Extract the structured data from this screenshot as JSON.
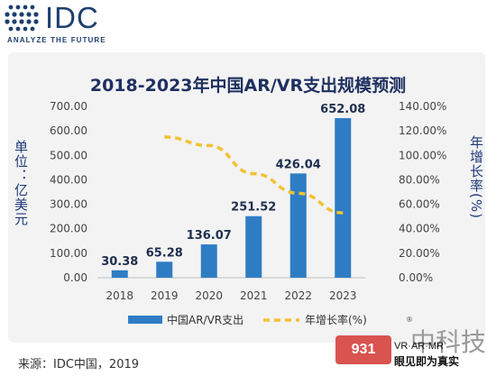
{
  "header": {
    "logo_text": "IDC",
    "logo_tagline": "ANALYZE THE FUTURE"
  },
  "chart_data": {
    "type": "bar",
    "title": "2018-2023年中国AR/VR支出规模预测",
    "ylabel": "单位：亿美元",
    "y2label": "年增长率(%)",
    "categories": [
      "2018",
      "2019",
      "2020",
      "2021",
      "2022",
      "2023"
    ],
    "ylim": [
      0,
      700
    ],
    "y_ticks": [
      "0.00",
      "100.00",
      "200.00",
      "300.00",
      "400.00",
      "500.00",
      "600.00",
      "700.00"
    ],
    "y2lim": [
      0,
      140
    ],
    "y2_ticks": [
      "0.00%",
      "20.00%",
      "40.00%",
      "60.00%",
      "80.00%",
      "100.00%",
      "120.00%",
      "140.00%"
    ],
    "grid": false,
    "legend_position": "bottom",
    "series": [
      {
        "name": "中国AR/VR支出",
        "kind": "bar",
        "axis": "left",
        "color": "#2e7dc4",
        "values": [
          30.38,
          65.28,
          136.07,
          251.52,
          426.04,
          652.08
        ],
        "labels": [
          "30.38",
          "65.28",
          "136.07",
          "251.52",
          "426.04",
          "652.08"
        ]
      },
      {
        "name": "年增长率(%)",
        "kind": "line",
        "style": "dashed",
        "axis": "right",
        "color": "#f3c233",
        "x": [
          "2019",
          "2020",
          "2021",
          "2022",
          "2023"
        ],
        "values": [
          115,
          108,
          85,
          69,
          53
        ]
      }
    ]
  },
  "footer": {
    "source": "来源：IDC中国，2019"
  },
  "watermark": {
    "badge_text": "931",
    "cn_text": "中科技",
    "line1": "VR·AR·MR",
    "line2": "眼见即为真实",
    "reg": "®"
  }
}
